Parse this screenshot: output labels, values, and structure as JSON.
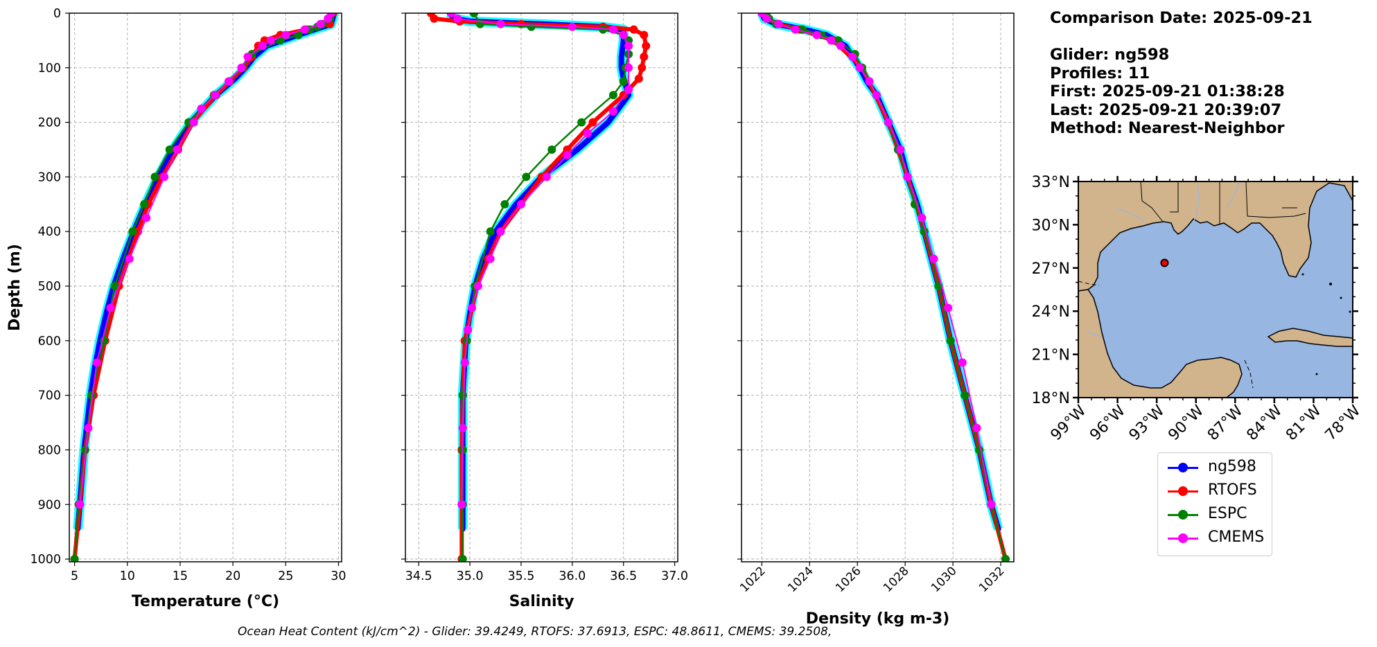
{
  "info": {
    "comparison_date": "Comparison Date: 2025-09-21",
    "glider": "Glider: ng598",
    "profiles": "Profiles: 11",
    "first": "First: 2025-09-21 01:38:28",
    "last": "Last: 2025-09-21 20:39:07",
    "method": "Method: Nearest-Neighbor"
  },
  "footer": "Ocean Heat Content (kJ/cm^2) - Glider: 39.4249,  RTOFS: 37.6913,  ESPC: 48.8611,  CMEMS: 39.2508,",
  "legend": [
    {
      "name": "ng598",
      "color": "#0000ff"
    },
    {
      "name": "RTOFS",
      "color": "#ff0000"
    },
    {
      "name": "ESPC",
      "color": "#008000"
    },
    {
      "name": "CMEMS",
      "color": "#ff00ff"
    }
  ],
  "chart_data": [
    {
      "type": "line",
      "xlabel": "Temperature (°C)",
      "ylabel": "Depth (m)",
      "xlim": [
        4.5,
        30.3
      ],
      "ylim": [
        1005,
        0
      ],
      "xticks": [
        5,
        10,
        15,
        20,
        25,
        30
      ],
      "yticks": [
        0,
        100,
        200,
        300,
        400,
        500,
        600,
        700,
        800,
        900,
        1000
      ],
      "grid": true,
      "series": [
        {
          "name": "ng598",
          "color": "#0000ff",
          "depth": [
            0,
            20,
            40,
            60,
            80,
            100,
            120,
            150,
            200,
            250,
            300,
            350,
            400,
            450,
            500,
            550,
            600,
            650,
            700,
            750,
            800,
            850,
            900,
            945
          ],
          "values": [
            29.6,
            29.3,
            26.2,
            23.2,
            22.0,
            21.2,
            20.2,
            18.4,
            16.0,
            14.3,
            12.9,
            11.7,
            10.6,
            9.6,
            8.7,
            8.0,
            7.4,
            6.9,
            6.5,
            6.2,
            5.9,
            5.7,
            5.5,
            5.3
          ]
        },
        {
          "name": "RTOFS",
          "color": "#ff0000",
          "depth": [
            0,
            20,
            30,
            40,
            50,
            60,
            80,
            100,
            125,
            150,
            200,
            250,
            300,
            350,
            400,
            500,
            600,
            700,
            800,
            900,
            1000
          ],
          "values": [
            29.5,
            29.2,
            27.0,
            24.5,
            23.0,
            22.4,
            21.8,
            21.0,
            19.7,
            18.4,
            16.2,
            14.8,
            13.3,
            12.0,
            11.0,
            9.2,
            7.9,
            6.8,
            6.0,
            5.5,
            5.0
          ]
        },
        {
          "name": "ESPC",
          "color": "#008000",
          "depth": [
            0,
            10,
            20,
            25,
            30,
            40,
            50,
            75,
            100,
            125,
            150,
            200,
            250,
            300,
            350,
            400,
            500,
            600,
            700,
            800,
            900,
            1000
          ],
          "values": [
            29.4,
            29.2,
            28.5,
            28.0,
            27.3,
            26.2,
            24.5,
            21.8,
            20.9,
            19.6,
            18.2,
            15.8,
            14.0,
            12.6,
            11.6,
            10.5,
            8.8,
            7.8,
            6.6,
            6.0,
            5.4,
            5.0
          ]
        },
        {
          "name": "CMEMS",
          "color": "#ff00ff",
          "depth": [
            0,
            10,
            20,
            30,
            40,
            50,
            60,
            80,
            100,
            125,
            150,
            175,
            200,
            250,
            300,
            375,
            450,
            540,
            640,
            760,
            900
          ],
          "values": [
            29.3,
            29.0,
            28.3,
            26.8,
            25.0,
            23.6,
            22.8,
            21.4,
            20.8,
            19.6,
            18.3,
            17.0,
            16.3,
            14.7,
            13.5,
            11.8,
            10.2,
            8.4,
            7.1,
            6.3,
            5.5
          ]
        }
      ]
    },
    {
      "type": "line",
      "xlabel": "Salinity",
      "xlim": [
        34.37,
        37.03
      ],
      "ylim": [
        1005,
        0
      ],
      "xticks": [
        34.5,
        35.0,
        35.5,
        36.0,
        36.5,
        37.0
      ],
      "xticklabels": [
        "34.5",
        "35.0",
        "35.5",
        "36.0",
        "36.5",
        "37.0"
      ],
      "grid": true,
      "series": [
        {
          "name": "ng598",
          "color": "#0000ff",
          "depth": [
            0,
            10,
            15,
            20,
            25,
            30,
            50,
            80,
            100,
            120,
            150,
            200,
            250,
            300,
            350,
            400,
            450,
            500,
            550,
            600,
            700,
            800,
            900,
            945
          ],
          "values": [
            34.8,
            34.85,
            35.0,
            35.7,
            36.3,
            36.5,
            36.5,
            36.48,
            36.48,
            36.5,
            36.55,
            36.35,
            36.05,
            35.7,
            35.45,
            35.25,
            35.13,
            35.05,
            35.0,
            34.96,
            34.93,
            34.93,
            34.93,
            34.93
          ]
        },
        {
          "name": "RTOFS",
          "color": "#ff0000",
          "depth": [
            0,
            10,
            15,
            20,
            25,
            30,
            40,
            60,
            80,
            100,
            120,
            150,
            200,
            250,
            300,
            350,
            400,
            450,
            500,
            600,
            700,
            800,
            900,
            1000
          ],
          "values": [
            34.62,
            34.65,
            34.9,
            35.5,
            36.3,
            36.6,
            36.7,
            36.72,
            36.7,
            36.68,
            36.65,
            36.5,
            36.2,
            35.95,
            35.7,
            35.5,
            35.3,
            35.18,
            35.07,
            34.95,
            34.93,
            34.92,
            34.92,
            34.92
          ]
        },
        {
          "name": "ESPC",
          "color": "#008000",
          "depth": [
            0,
            20,
            25,
            30,
            40,
            50,
            75,
            100,
            125,
            150,
            200,
            250,
            300,
            350,
            400,
            500,
            600,
            700,
            800,
            900,
            1000
          ],
          "values": [
            35.04,
            35.1,
            35.6,
            36.3,
            36.5,
            36.55,
            36.55,
            36.52,
            36.5,
            36.4,
            36.09,
            35.8,
            35.55,
            35.34,
            35.2,
            35.05,
            34.97,
            34.93,
            34.93,
            34.93,
            34.93
          ]
        },
        {
          "name": "CMEMS",
          "color": "#ff00ff",
          "depth": [
            0,
            10,
            20,
            25,
            30,
            40,
            60,
            100,
            140,
            180,
            220,
            260,
            300,
            350,
            400,
            450,
            500,
            540,
            580,
            640,
            760,
            900
          ],
          "values": [
            34.82,
            34.88,
            35.3,
            36.0,
            36.4,
            36.5,
            36.55,
            36.55,
            36.55,
            36.4,
            36.15,
            35.95,
            35.75,
            35.5,
            35.3,
            35.2,
            35.08,
            35.02,
            34.98,
            34.95,
            34.93,
            34.92
          ]
        }
      ]
    },
    {
      "type": "line",
      "xlabel": "Density (kg m-3)",
      "xlim": [
        1021.15,
        1032.55
      ],
      "ylim": [
        1005,
        0
      ],
      "xticks": [
        1022,
        1024,
        1026,
        1028,
        1030,
        1032
      ],
      "grid": true,
      "series": [
        {
          "name": "ng598",
          "color": "#0000ff",
          "depth": [
            0,
            10,
            20,
            30,
            40,
            60,
            80,
            100,
            125,
            150,
            200,
            250,
            300,
            350,
            400,
            500,
            600,
            700,
            800,
            900,
            945
          ],
          "values": [
            1022.0,
            1022.1,
            1022.6,
            1023.8,
            1024.7,
            1025.5,
            1025.8,
            1026.1,
            1026.4,
            1026.8,
            1027.3,
            1027.8,
            1028.1,
            1028.5,
            1028.8,
            1029.4,
            1029.9,
            1030.5,
            1031.1,
            1031.6,
            1031.9
          ]
        },
        {
          "name": "RTOFS",
          "color": "#ff0000",
          "depth": [
            0,
            10,
            20,
            30,
            50,
            100,
            200,
            300,
            400,
            500,
            600,
            700,
            800,
            900,
            1000
          ],
          "values": [
            1022.0,
            1022.2,
            1022.7,
            1023.6,
            1025.0,
            1026.2,
            1027.3,
            1028.1,
            1028.8,
            1029.4,
            1029.9,
            1030.5,
            1031.1,
            1031.6,
            1032.2
          ]
        },
        {
          "name": "ESPC",
          "color": "#008000",
          "depth": [
            0,
            10,
            20,
            30,
            40,
            50,
            75,
            100,
            125,
            150,
            200,
            250,
            300,
            350,
            400,
            500,
            600,
            700,
            800,
            900,
            1000
          ],
          "values": [
            1022.2,
            1022.3,
            1022.6,
            1023.7,
            1024.5,
            1025.2,
            1025.9,
            1026.2,
            1026.5,
            1026.8,
            1027.3,
            1027.7,
            1028.1,
            1028.4,
            1028.8,
            1029.4,
            1029.9,
            1030.5,
            1031.1,
            1031.6,
            1032.2
          ]
        },
        {
          "name": "CMEMS",
          "color": "#ff00ff",
          "depth": [
            0,
            10,
            20,
            30,
            40,
            50,
            60,
            80,
            100,
            125,
            150,
            200,
            250,
            300,
            375,
            450,
            540,
            640,
            760,
            900
          ],
          "values": [
            1022.0,
            1022.2,
            1022.7,
            1023.4,
            1024.3,
            1024.9,
            1025.3,
            1025.8,
            1026.1,
            1026.5,
            1026.8,
            1027.3,
            1027.8,
            1028.1,
            1028.7,
            1029.2,
            1029.8,
            1030.4,
            1031.0,
            1031.6
          ]
        }
      ]
    },
    {
      "type": "map",
      "region": "Gulf of Mexico",
      "lon_range": [
        -99,
        -78
      ],
      "lat_range": [
        18,
        33
      ],
      "xticks": [
        "99°W",
        "96°W",
        "93°W",
        "90°W",
        "87°W",
        "84°W",
        "81°W",
        "78°W"
      ],
      "yticks": [
        "33°N",
        "30°N",
        "27°N",
        "24°N",
        "21°N",
        "18°N"
      ],
      "land_color": "#d2b48c",
      "ocean_color": "#97b6e1",
      "glider_location": {
        "lon": -92.4,
        "lat": 27.35
      }
    }
  ]
}
